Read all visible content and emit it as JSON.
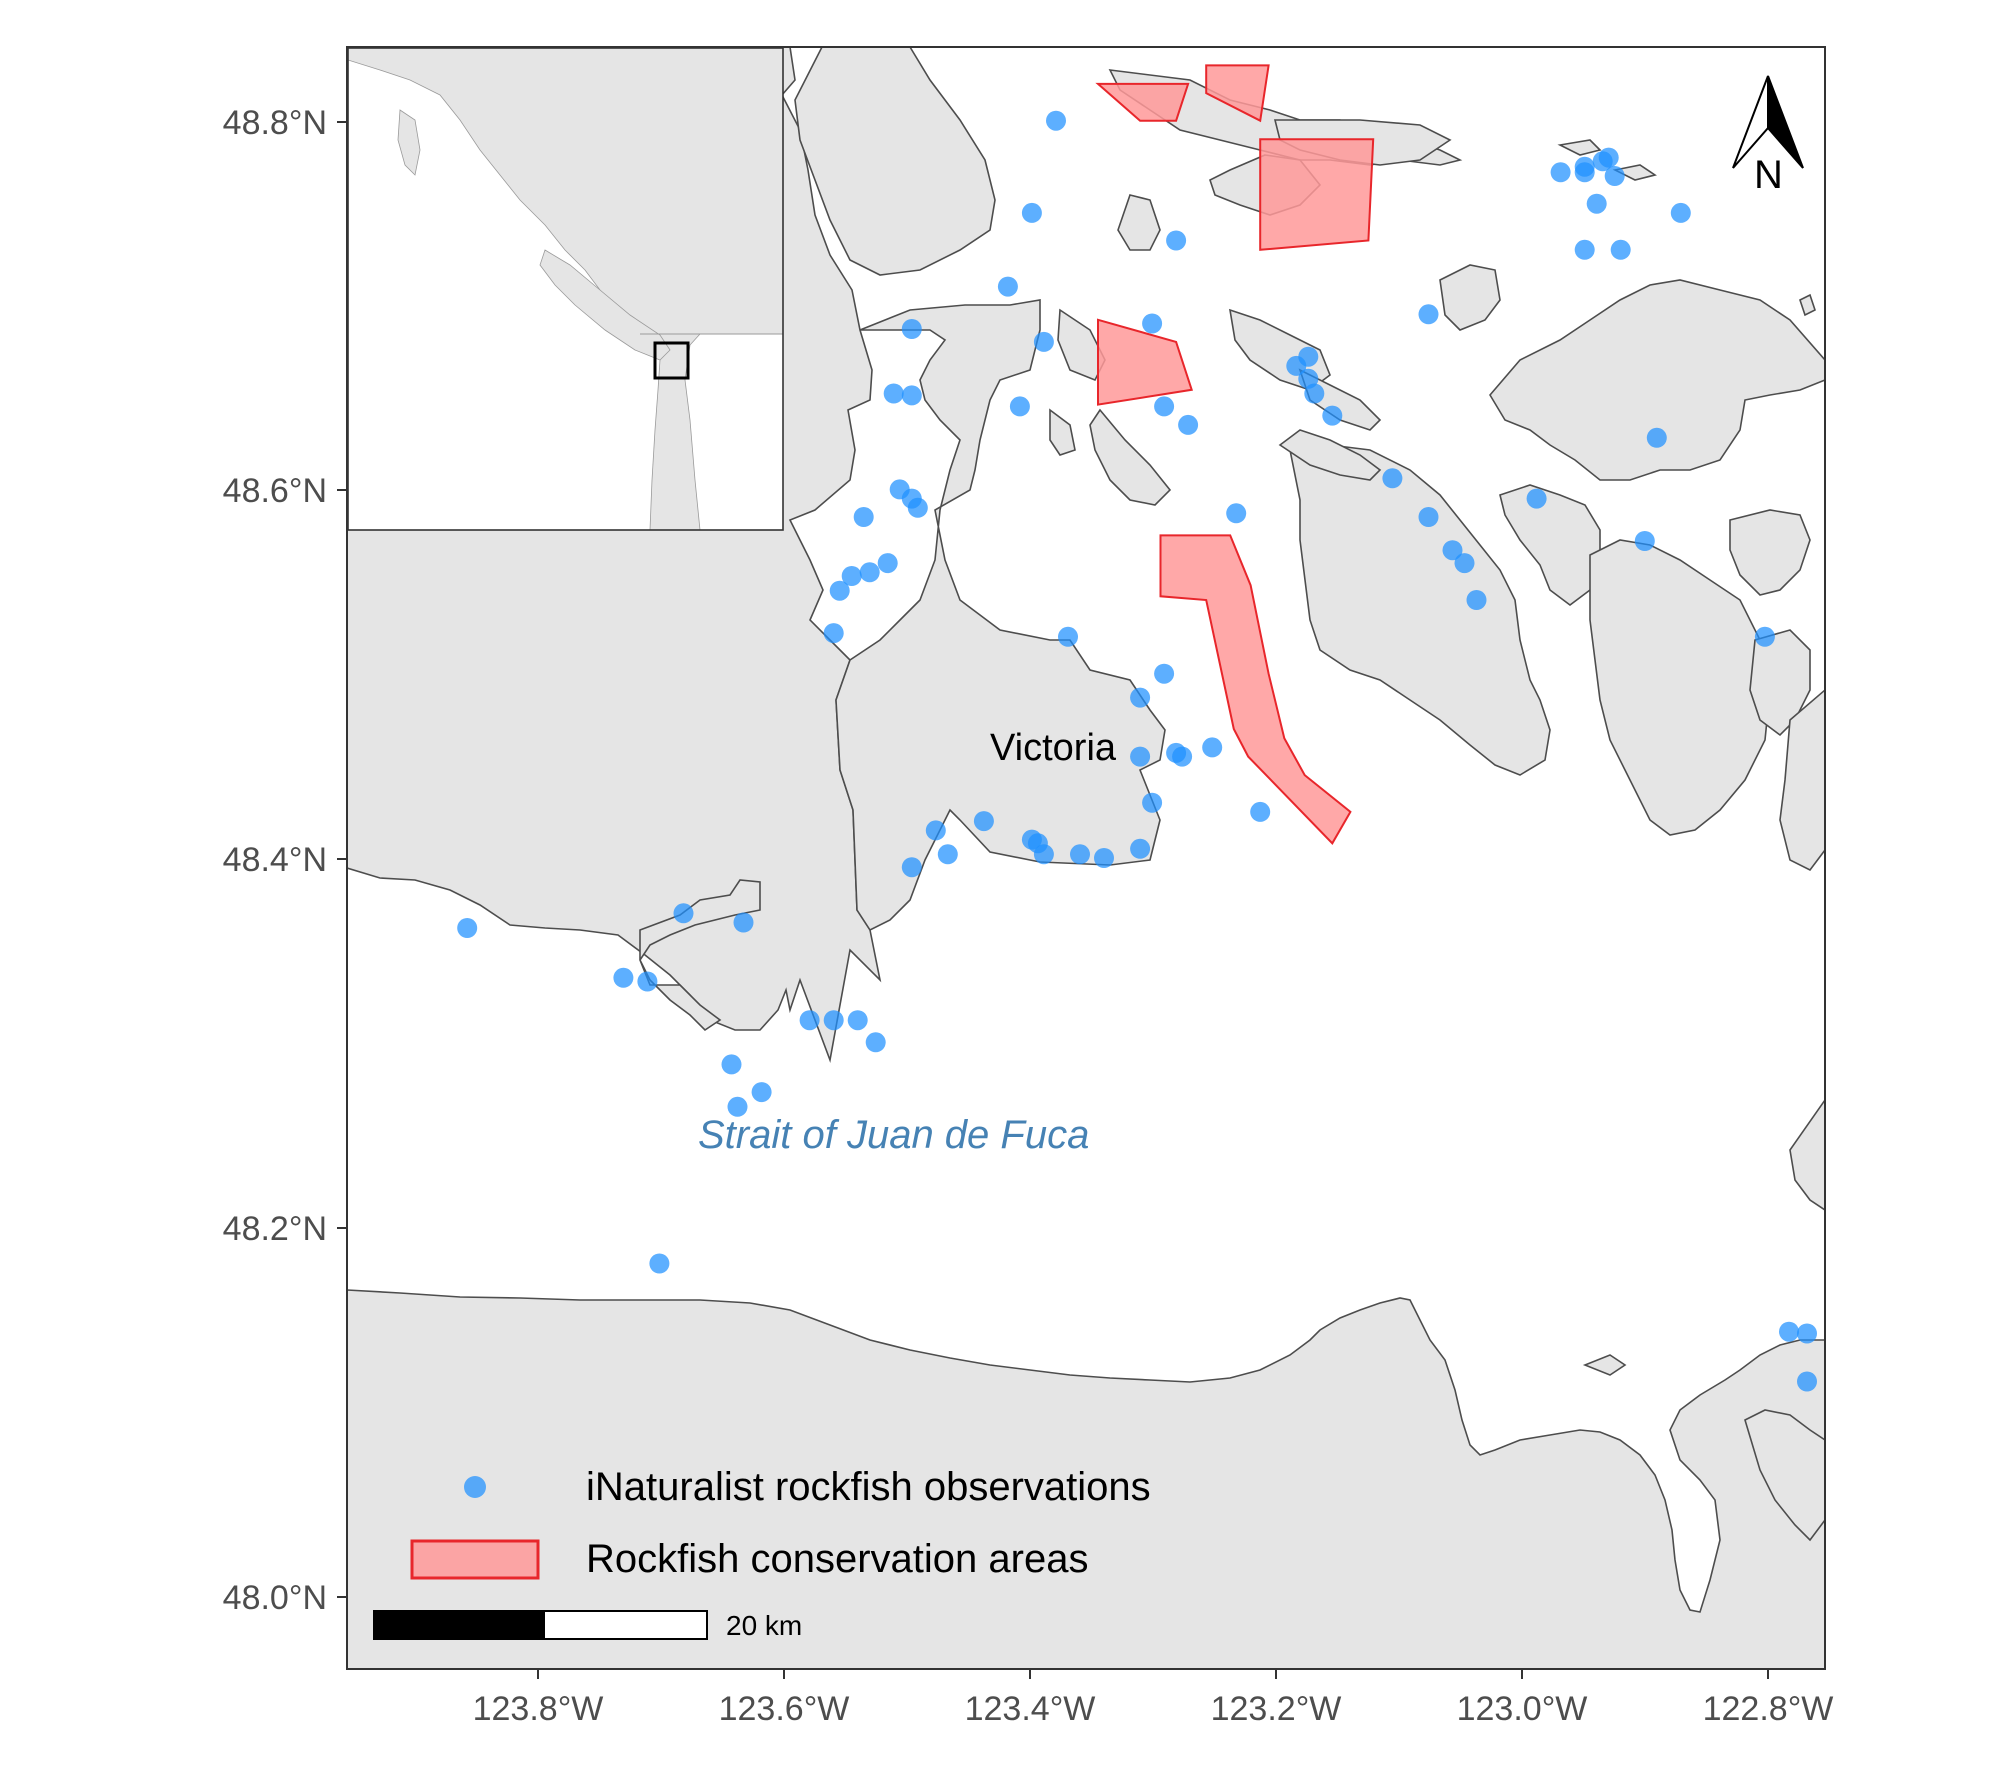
{
  "map": {
    "place_label": "Victoria",
    "water_label": "Strait of Juan de Fuca",
    "north_arrow_label": "N",
    "scale_bar_label": "20 km",
    "colors": {
      "land": "#e5e5e5",
      "coastline": "#4d4d4d",
      "water": "#ffffff",
      "observation": "#1e90ff",
      "conservation_fill": "#ff9999",
      "conservation_stroke": "#e8262b"
    }
  },
  "axes": {
    "x_ticks": [
      "123.8°W",
      "123.6°W",
      "123.4°W",
      "123.2°W",
      "123.0°W",
      "122.8°W"
    ],
    "y_ticks": [
      "48.8°N",
      "48.6°N",
      "48.4°N",
      "48.2°N",
      "48.0°N"
    ]
  },
  "legend": {
    "items": [
      {
        "label": "iNaturalist rockfish observations",
        "symbol": "point"
      },
      {
        "label": "Rockfish conservation areas",
        "symbol": "polygon"
      }
    ]
  },
  "chart_data": {
    "type": "scatter",
    "x_unit": "degrees longitude (negative = W)",
    "y_unit": "degrees latitude (N)",
    "xlim": [
      -123.96,
      -122.73
    ],
    "ylim": [
      47.96,
      48.84
    ],
    "series": [
      {
        "name": "iNaturalist rockfish observations",
        "points": [
          [
            -123.37,
            48.8
          ],
          [
            -123.39,
            48.75
          ],
          [
            -123.41,
            48.71
          ],
          [
            -123.29,
            48.69
          ],
          [
            -123.27,
            48.735
          ],
          [
            -123.49,
            48.687
          ],
          [
            -123.505,
            48.652
          ],
          [
            -123.49,
            48.651
          ],
          [
            -123.5,
            48.6
          ],
          [
            -123.49,
            48.595
          ],
          [
            -123.485,
            48.59
          ],
          [
            -123.53,
            48.585
          ],
          [
            -123.51,
            48.56
          ],
          [
            -123.525,
            48.555
          ],
          [
            -123.54,
            48.553
          ],
          [
            -123.55,
            48.545
          ],
          [
            -123.555,
            48.522
          ],
          [
            -123.4,
            48.645
          ],
          [
            -123.38,
            48.68
          ],
          [
            -123.28,
            48.645
          ],
          [
            -123.26,
            48.635
          ],
          [
            -123.22,
            48.587
          ],
          [
            -123.36,
            48.52
          ],
          [
            -123.28,
            48.5
          ],
          [
            -123.3,
            48.487
          ],
          [
            -123.27,
            48.457
          ],
          [
            -123.265,
            48.455
          ],
          [
            -123.3,
            48.455
          ],
          [
            -123.24,
            48.46
          ],
          [
            -123.2,
            48.425
          ],
          [
            -123.29,
            48.43
          ],
          [
            -123.43,
            48.42
          ],
          [
            -123.47,
            48.415
          ],
          [
            -123.46,
            48.402
          ],
          [
            -123.39,
            48.41
          ],
          [
            -123.385,
            48.408
          ],
          [
            -123.38,
            48.402
          ],
          [
            -123.35,
            48.402
          ],
          [
            -123.33,
            48.4
          ],
          [
            -123.3,
            48.405
          ],
          [
            -123.49,
            48.395
          ],
          [
            -123.86,
            48.362
          ],
          [
            -123.73,
            48.335
          ],
          [
            -123.71,
            48.333
          ],
          [
            -123.68,
            48.37
          ],
          [
            -123.63,
            48.365
          ],
          [
            -123.575,
            48.312
          ],
          [
            -123.555,
            48.312
          ],
          [
            -123.535,
            48.312
          ],
          [
            -123.52,
            48.3
          ],
          [
            -123.64,
            48.288
          ],
          [
            -123.615,
            48.273
          ],
          [
            -123.635,
            48.265
          ],
          [
            -123.7,
            48.18
          ],
          [
            -123.17,
            48.667
          ],
          [
            -123.16,
            48.672
          ],
          [
            -123.16,
            48.66
          ],
          [
            -123.155,
            48.652
          ],
          [
            -123.14,
            48.64
          ],
          [
            -123.09,
            48.606
          ],
          [
            -123.06,
            48.585
          ],
          [
            -123.04,
            48.567
          ],
          [
            -123.03,
            48.56
          ],
          [
            -123.02,
            48.54
          ],
          [
            -122.97,
            48.595
          ],
          [
            -122.93,
            48.775
          ],
          [
            -122.93,
            48.772
          ],
          [
            -122.915,
            48.778
          ],
          [
            -122.95,
            48.772
          ],
          [
            -122.91,
            48.78
          ],
          [
            -122.905,
            48.77
          ],
          [
            -122.92,
            48.755
          ],
          [
            -122.85,
            48.75
          ],
          [
            -122.9,
            48.73
          ],
          [
            -122.93,
            48.73
          ],
          [
            -122.87,
            48.628
          ],
          [
            -122.88,
            48.572
          ],
          [
            -122.78,
            48.52
          ],
          [
            -122.76,
            48.143
          ],
          [
            -122.745,
            48.142
          ],
          [
            -122.745,
            48.116
          ],
          [
            -123.06,
            48.695
          ]
        ]
      },
      {
        "name": "Rockfish conservation areas",
        "polygons": [
          [
            [
              -123.283,
              48.575
            ],
            [
              -123.225,
              48.575
            ],
            [
              -123.208,
              48.548
            ],
            [
              -123.193,
              48.5
            ],
            [
              -123.18,
              48.465
            ],
            [
              -123.163,
              48.445
            ],
            [
              -123.125,
              48.425
            ],
            [
              -123.14,
              48.408
            ],
            [
              -123.21,
              48.455
            ],
            [
              -123.222,
              48.47
            ],
            [
              -123.245,
              48.54
            ],
            [
              -123.283,
              48.542
            ]
          ],
          [
            [
              -123.335,
              48.692
            ],
            [
              -123.27,
              48.68
            ],
            [
              -123.257,
              48.654
            ],
            [
              -123.335,
              48.646
            ]
          ],
          [
            [
              -123.2,
              48.79
            ],
            [
              -123.106,
              48.79
            ],
            [
              -123.11,
              48.735
            ],
            [
              -123.2,
              48.73
            ]
          ],
          [
            [
              -123.335,
              48.82
            ],
            [
              -123.26,
              48.82
            ],
            [
              -123.27,
              48.8
            ],
            [
              -123.3,
              48.8
            ]
          ],
          [
            [
              -123.245,
              48.83
            ],
            [
              -123.193,
              48.83
            ],
            [
              -123.2,
              48.8
            ],
            [
              -123.245,
              48.815
            ]
          ]
        ]
      }
    ]
  }
}
